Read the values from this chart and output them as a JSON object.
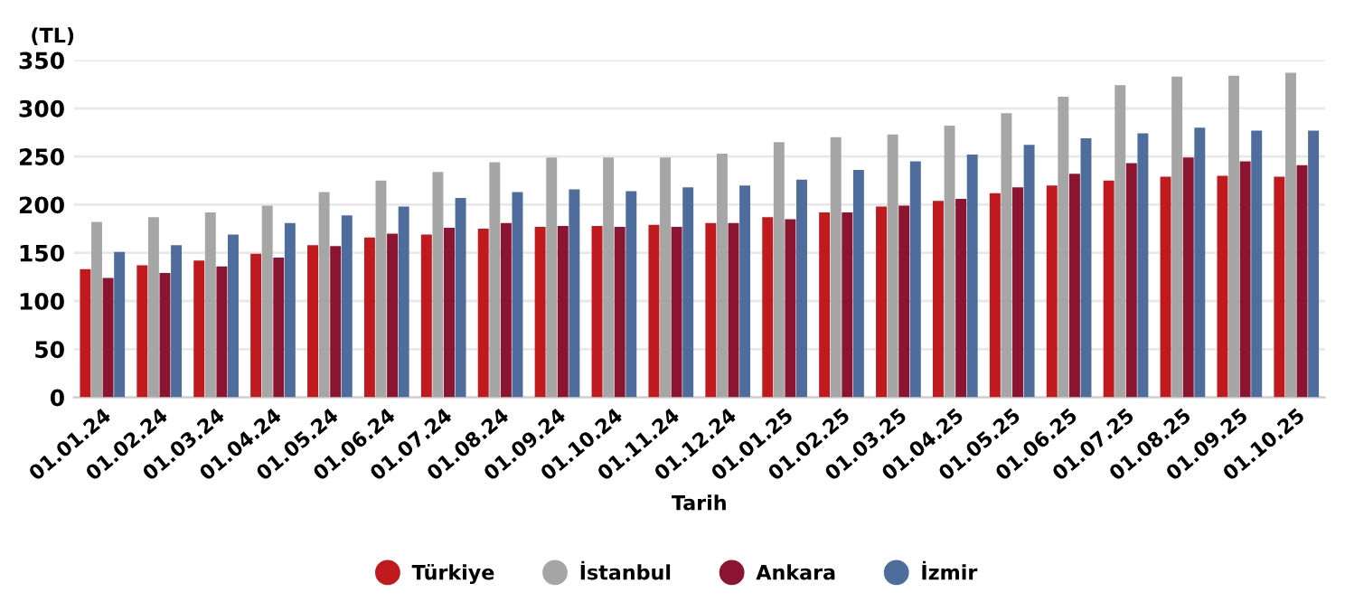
{
  "chart_data": {
    "type": "bar",
    "ylabel": "(TL)",
    "xlabel": "Tarih",
    "categories": [
      "01.01.24",
      "01.02.24",
      "01.03.24",
      "01.04.24",
      "01.05.24",
      "01.06.24",
      "01.07.24",
      "01.08.24",
      "01.09.24",
      "01.10.24",
      "01.11.24",
      "01.12.24",
      "01.01.25",
      "01.02.25",
      "01.03.25",
      "01.04.25",
      "01.05.25",
      "01.06.25",
      "01.07.25",
      "01.08.25",
      "01.09.25",
      "01.10.25"
    ],
    "series": [
      {
        "name": "Türkiye",
        "color": "#c0191e",
        "values": [
          133,
          137,
          142,
          149,
          158,
          166,
          169,
          175,
          177,
          178,
          179,
          181,
          187,
          192,
          198,
          204,
          212,
          220,
          225,
          229,
          230,
          229
        ]
      },
      {
        "name": "İstanbul",
        "color": "#a6a6a6",
        "values": [
          182,
          187,
          192,
          199,
          213,
          225,
          234,
          244,
          249,
          249,
          249,
          253,
          265,
          270,
          273,
          282,
          295,
          312,
          324,
          333,
          334,
          337
        ]
      },
      {
        "name": "Ankara",
        "color": "#8b1530",
        "values": [
          124,
          129,
          136,
          145,
          157,
          170,
          176,
          181,
          178,
          177,
          177,
          181,
          185,
          192,
          199,
          206,
          218,
          232,
          243,
          249,
          245,
          241
        ]
      },
      {
        "name": "İzmir",
        "color": "#4f6d9c",
        "values": [
          151,
          158,
          169,
          181,
          189,
          198,
          207,
          213,
          216,
          214,
          218,
          220,
          226,
          236,
          245,
          252,
          262,
          269,
          274,
          280,
          277,
          277
        ]
      }
    ],
    "ylim": [
      0,
      350
    ],
    "yticks": [
      0,
      50,
      100,
      150,
      200,
      250,
      300,
      350
    ],
    "grid": "y",
    "legend": "bottom"
  }
}
